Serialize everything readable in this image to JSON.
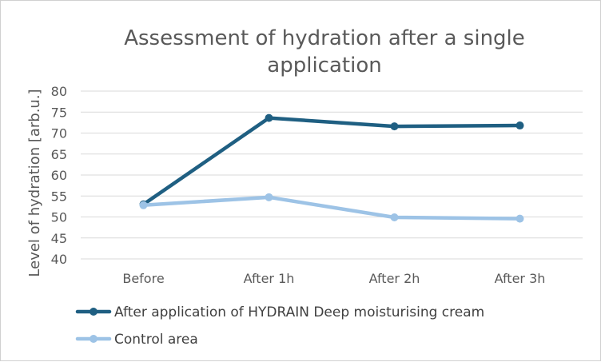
{
  "chart_data": {
    "type": "line",
    "title_lines": [
      "Assessment of hydration after a single",
      "application"
    ],
    "ylabel": "Level of hydration [arb.u.]",
    "xlabel": "",
    "categories": [
      "Before",
      "After 1h",
      "After 2h",
      "After 3h"
    ],
    "ylim": [
      40,
      80
    ],
    "ytick_step": 5,
    "grid": true,
    "legend_position": "bottom",
    "series": [
      {
        "name": "After application of HYDRAIN Deep moisturising cream",
        "values": [
          53.0,
          73.6,
          71.6,
          71.8
        ],
        "color": "#1f5f82"
      },
      {
        "name": "Control area",
        "values": [
          52.8,
          54.7,
          49.9,
          49.6
        ],
        "color": "#9dc3e6"
      }
    ]
  }
}
